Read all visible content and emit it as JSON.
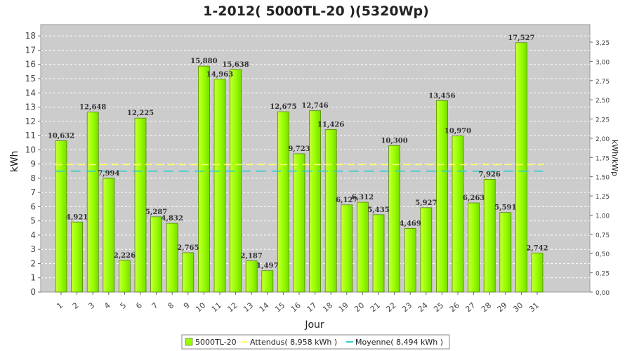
{
  "chart_data": {
    "type": "bar",
    "title": "1-2012( 5000TL-20 )(5320Wp)",
    "xlabel": "Jour",
    "ylabel": "kWh",
    "y2label": "kWh/kWp",
    "ylim": [
      0,
      18.8
    ],
    "yticks": [
      0,
      1,
      2,
      3,
      4,
      5,
      6,
      7,
      8,
      9,
      10,
      11,
      12,
      13,
      14,
      15,
      16,
      17,
      18
    ],
    "y2ticks": [
      "0,00",
      "0,25",
      "0,50",
      "0,75",
      "1,00",
      "1,25",
      "1,50",
      "1,75",
      "2,00",
      "2,25",
      "2,50",
      "2,75",
      "3,00",
      "3,25"
    ],
    "categories": [
      "1",
      "2",
      "3",
      "4",
      "5",
      "6",
      "7",
      "8",
      "9",
      "10",
      "11",
      "12",
      "13",
      "14",
      "15",
      "16",
      "17",
      "18",
      "19",
      "20",
      "21",
      "22",
      "23",
      "24",
      "25",
      "26",
      "27",
      "28",
      "29",
      "30",
      "31"
    ],
    "series": [
      {
        "name": "5000TL-20",
        "color": "#99ff00",
        "values": [
          10.632,
          4.921,
          12.648,
          7.994,
          2.226,
          12.225,
          5.287,
          4.832,
          2.765,
          15.88,
          14.963,
          15.638,
          2.187,
          1.497,
          12.675,
          9.723,
          12.746,
          11.426,
          6.127,
          6.312,
          5.435,
          10.3,
          4.469,
          5.927,
          13.456,
          10.97,
          6.263,
          7.926,
          5.591,
          17.527,
          2.742
        ],
        "labels": [
          "10,632",
          "4,921",
          "12,648",
          "7,994",
          "2,226",
          "12,225",
          "5,287",
          "4,832",
          "2,765",
          "15,880",
          "14,963",
          "15,638",
          "2,187",
          "1,497",
          "12,675",
          "9,723",
          "12,746",
          "11,426",
          "6,127",
          "6,312",
          "5,435",
          "10,300",
          "4,469",
          "5,927",
          "13,456",
          "10,970",
          "6,263",
          "7,926",
          "5,591",
          "17,527",
          "2,742"
        ]
      }
    ],
    "reference_lines": [
      {
        "name": "Attendus",
        "value": 8.958,
        "color": "#ffff66",
        "legend": "Attendus( 8,958 kWh )"
      },
      {
        "name": "Moyenne",
        "value": 8.494,
        "color": "#33cccc",
        "legend": "Moyenne( 8,494 kWh )"
      }
    ],
    "legend_position": "bottom",
    "grid": true,
    "colors": {
      "plot_bg": "#cccccc",
      "grid": "#ffffff",
      "bar_stroke": "#66aa00"
    }
  }
}
